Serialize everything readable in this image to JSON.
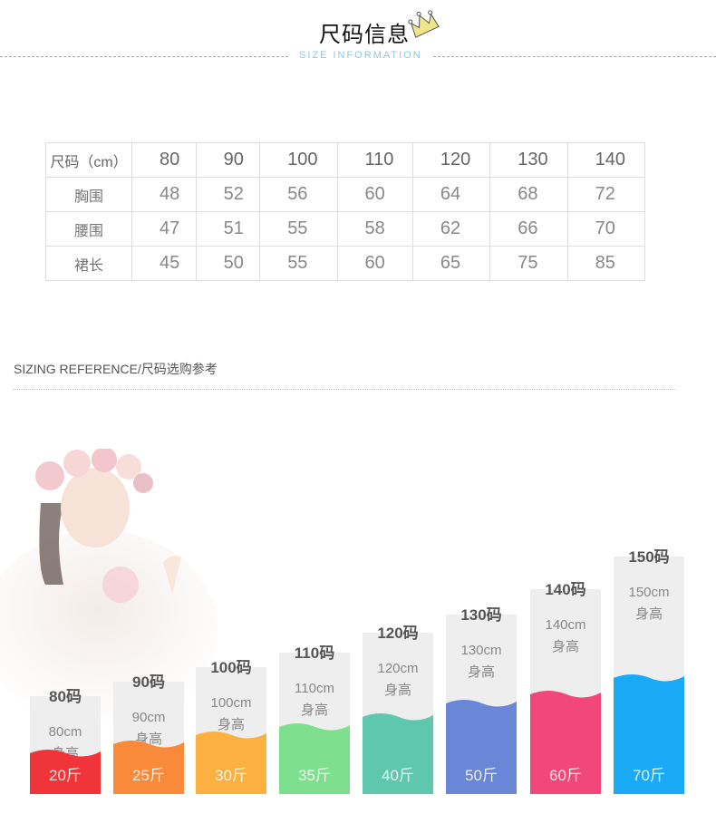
{
  "header": {
    "title": "尺码信息",
    "subtitle": "SIZE INFORMATION",
    "crown_icon": "crown-icon"
  },
  "table": {
    "headers": [
      "尺码（cm）",
      "80",
      "90",
      "100",
      "110",
      "120",
      "130",
      "140"
    ],
    "rows": [
      {
        "label": "胸围",
        "values": [
          "48",
          "52",
          "56",
          "60",
          "64",
          "68",
          "72"
        ]
      },
      {
        "label": "腰围",
        "values": [
          "47",
          "51",
          "55",
          "58",
          "62",
          "66",
          "70"
        ]
      },
      {
        "label": "裙长",
        "values": [
          "45",
          "50",
          "55",
          "60",
          "65",
          "75",
          "85"
        ]
      }
    ]
  },
  "reference": {
    "title": "SIZING REFERENCE/尺码选购参考"
  },
  "sizes": [
    {
      "size": "80码",
      "height": "80cm",
      "height_label": "身高",
      "weight": "20斤",
      "color": "#f0353a"
    },
    {
      "size": "90码",
      "height": "90cm",
      "height_label": "身高",
      "weight": "25斤",
      "color": "#f98a3a"
    },
    {
      "size": "100码",
      "height": "100cm",
      "height_label": "身高",
      "weight": "30斤",
      "color": "#fbb040"
    },
    {
      "size": "110码",
      "height": "110cm",
      "height_label": "身高",
      "weight": "35斤",
      "color": "#7ee08f"
    },
    {
      "size": "120码",
      "height": "120cm",
      "height_label": "身高",
      "weight": "40斤",
      "color": "#5ec7ae"
    },
    {
      "size": "130码",
      "height": "130cm",
      "height_label": "身高",
      "weight": "50斤",
      "color": "#6a86d6"
    },
    {
      "size": "140码",
      "height": "140cm",
      "height_label": "身高",
      "weight": "60斤",
      "color": "#f2477b"
    },
    {
      "size": "150码",
      "height": "150cm",
      "height_label": "身高",
      "weight": "70斤",
      "color": "#1aa9f5"
    }
  ]
}
